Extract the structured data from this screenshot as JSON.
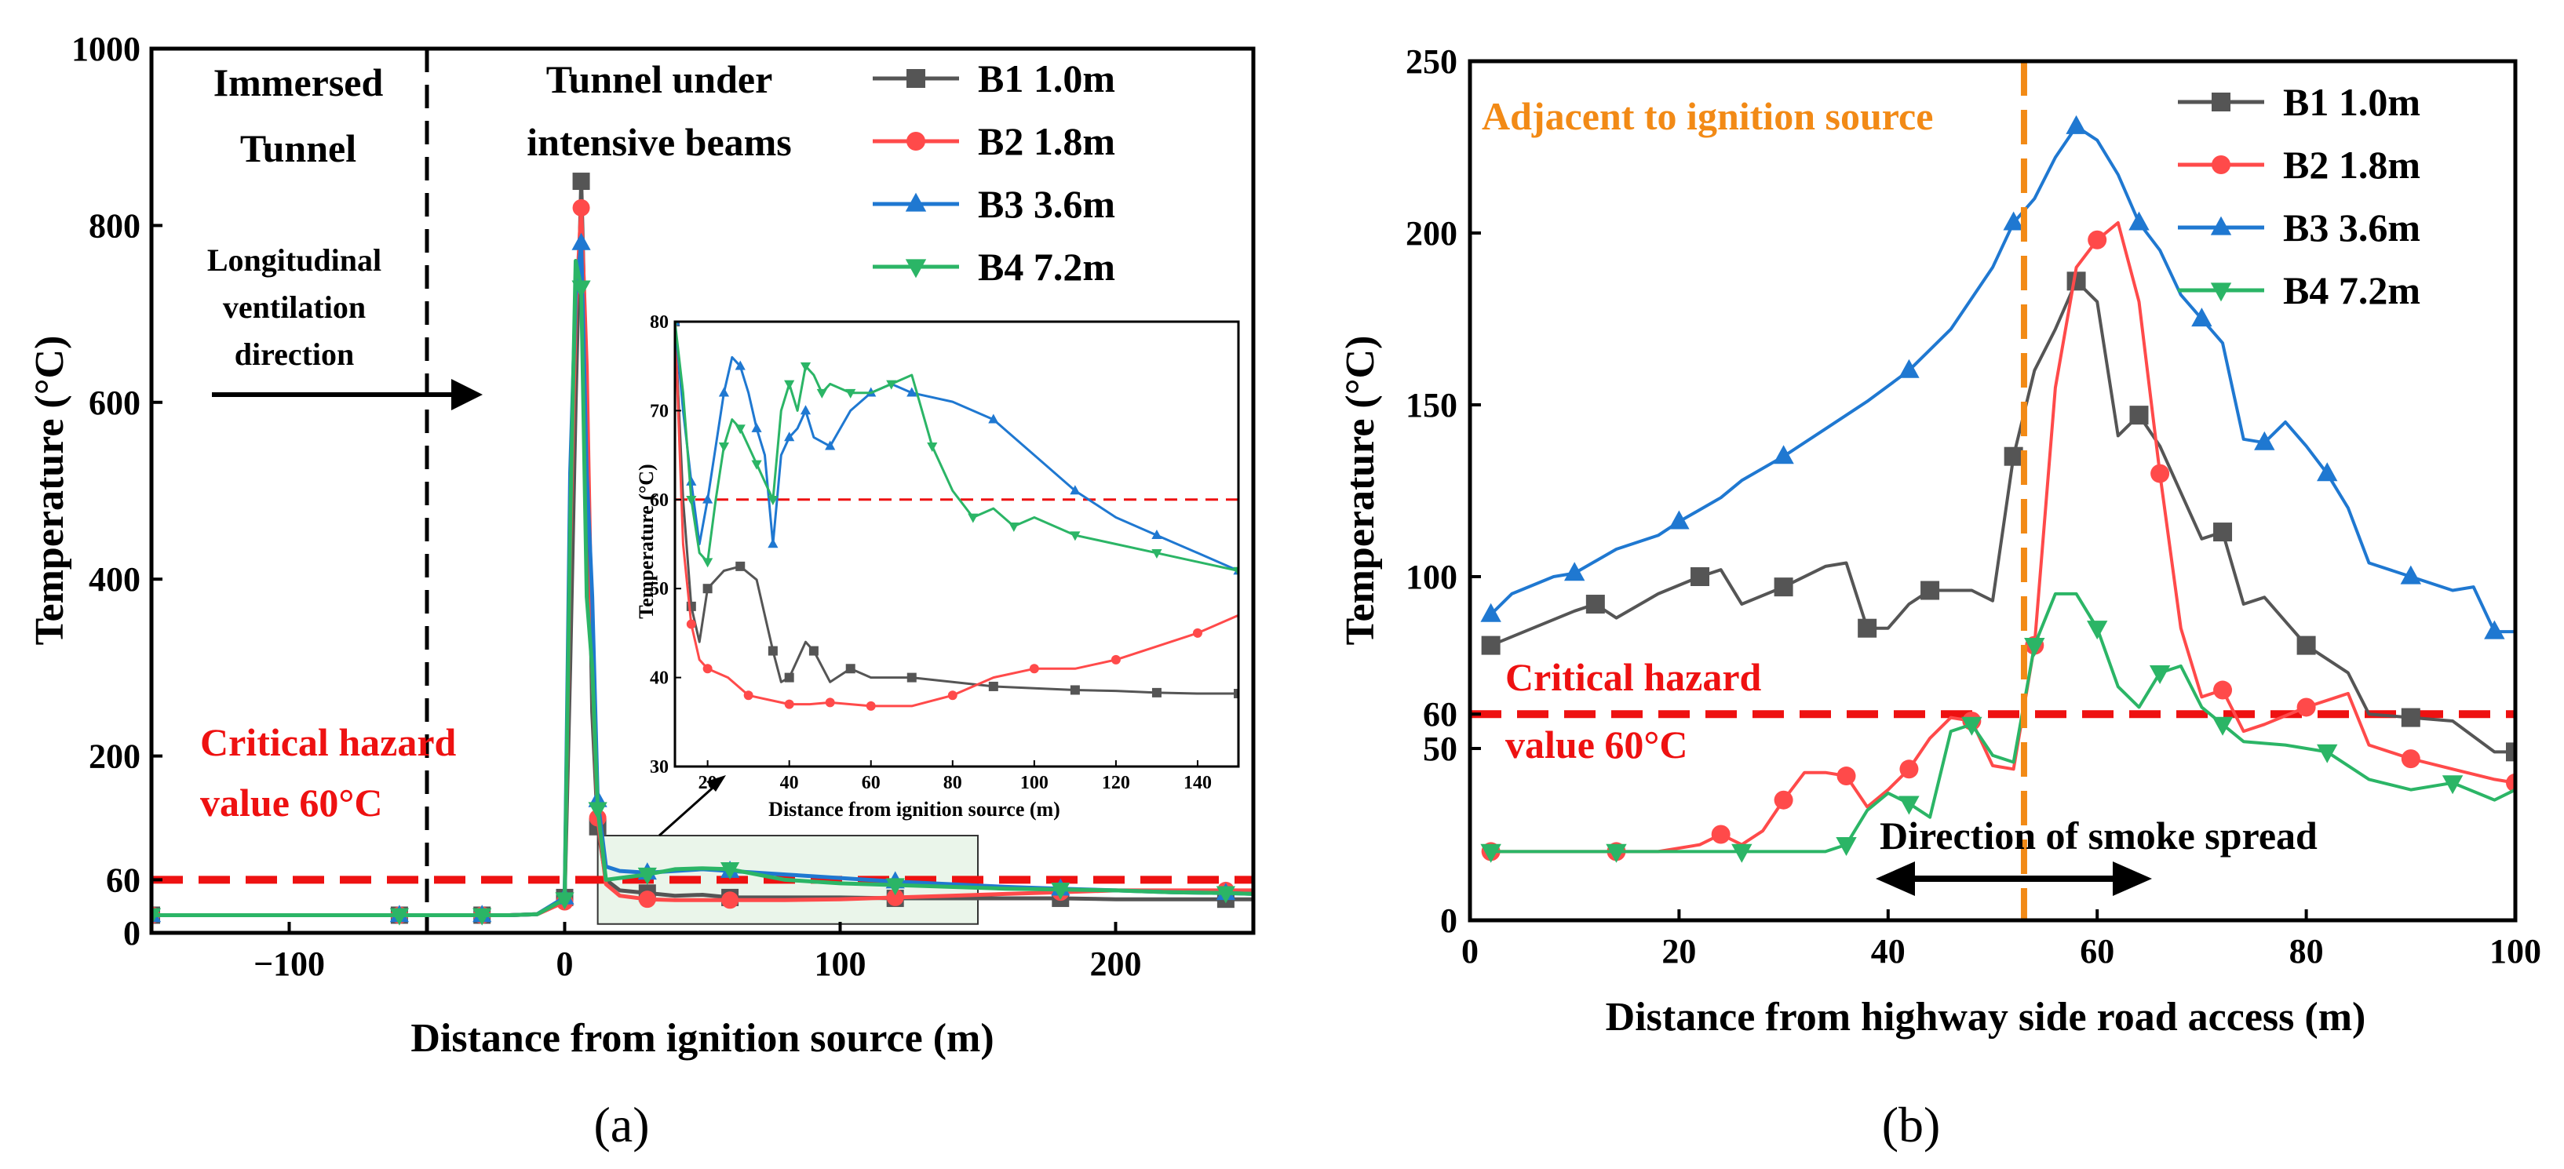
{
  "figure": {
    "label_a": "(a)",
    "label_b": "(b)"
  },
  "colors": {
    "B1": "#555555",
    "B2": "#ff4a4a",
    "B3": "#1f78d1",
    "B4": "#2bb566",
    "threshold": "#ee1111",
    "marker": "#f28a16"
  },
  "annotations_a": {
    "immersed_1": "Immersed",
    "immersed_2": "Tunnel",
    "beams_1": "Tunnel under",
    "beams_2": "intensive beams",
    "vent_1": "Longitudinal",
    "vent_2": "ventilation",
    "vent_3": "direction",
    "crit_1": "Critical hazard",
    "crit_2": "value 60°C"
  },
  "annotations_b": {
    "adjacent": "Adjacent to ignition source",
    "crit_1": "Critical hazard",
    "crit_2": "value 60°C",
    "smoke": "Direction of smoke spread"
  },
  "chart_data": [
    {
      "type": "line",
      "title": "(a)",
      "xlabel": "Distance from ignition source (m)",
      "ylabel": "Temperature (°C)",
      "xlim": [
        -150,
        250
      ],
      "ylim": [
        0,
        1000
      ],
      "xticks": [
        -100,
        0,
        100,
        200
      ],
      "xtick_labels": [
        "−100",
        "0",
        "100",
        "200"
      ],
      "yticks": [
        0,
        60,
        200,
        400,
        600,
        800,
        1000
      ],
      "threshold": 60,
      "divider_x": -50,
      "series": [
        {
          "name": "B1 1.0m",
          "key": "B1",
          "marker": "square",
          "x": [
            -150,
            -120,
            -90,
            -60,
            -50,
            -40,
            -30,
            -20,
            -10,
            0,
            2,
            4,
            6,
            8,
            10,
            12,
            15,
            20,
            30,
            40,
            50,
            60,
            80,
            100,
            120,
            140,
            160,
            180,
            200,
            220,
            240,
            250
          ],
          "y": [
            20,
            20,
            20,
            20,
            20,
            20,
            20,
            20,
            21,
            40,
            300,
            600,
            850,
            600,
            250,
            120,
            60,
            48,
            45,
            42,
            43,
            40,
            40,
            40,
            39,
            39,
            39,
            39,
            38,
            38,
            38,
            38
          ]
        },
        {
          "name": "B2 1.8m",
          "key": "B2",
          "marker": "circle",
          "x": [
            -150,
            -120,
            -90,
            -60,
            -50,
            -40,
            -30,
            -20,
            -10,
            0,
            2,
            4,
            6,
            8,
            10,
            12,
            15,
            20,
            30,
            40,
            50,
            60,
            80,
            100,
            120,
            140,
            160,
            180,
            200,
            220,
            240,
            250
          ],
          "y": [
            20,
            20,
            20,
            20,
            20,
            20,
            20,
            20,
            21,
            35,
            440,
            700,
            820,
            640,
            300,
            130,
            55,
            42,
            38,
            37,
            37,
            37,
            37,
            38,
            40,
            42,
            44,
            46,
            48,
            48,
            48,
            48
          ]
        },
        {
          "name": "B3 3.6m",
          "key": "B3",
          "marker": "triangle-up",
          "x": [
            -150,
            -120,
            -90,
            -60,
            -50,
            -40,
            -30,
            -20,
            -10,
            0,
            2,
            4,
            6,
            8,
            10,
            12,
            15,
            20,
            30,
            40,
            50,
            60,
            80,
            100,
            120,
            140,
            160,
            180,
            200,
            220,
            240,
            250
          ],
          "y": [
            20,
            20,
            20,
            20,
            20,
            20,
            20,
            20,
            21,
            40,
            520,
            720,
            780,
            520,
            380,
            150,
            75,
            70,
            68,
            70,
            72,
            70,
            66,
            62,
            58,
            55,
            52,
            50,
            48,
            46,
            45,
            44
          ]
        },
        {
          "name": "B4 7.2m",
          "key": "B4",
          "marker": "triangle-down",
          "x": [
            -150,
            -120,
            -90,
            -60,
            -50,
            -40,
            -30,
            -20,
            -10,
            0,
            2,
            4,
            6,
            8,
            10,
            12,
            15,
            20,
            30,
            40,
            50,
            60,
            80,
            100,
            120,
            140,
            160,
            180,
            200,
            220,
            240,
            250
          ],
          "y": [
            20,
            20,
            20,
            20,
            20,
            20,
            20,
            20,
            21,
            38,
            460,
            760,
            730,
            380,
            300,
            140,
            60,
            62,
            66,
            72,
            73,
            72,
            60,
            56,
            54,
            52,
            50,
            49,
            48,
            46,
            45,
            44
          ]
        }
      ]
    },
    {
      "type": "line",
      "title": "(a) inset",
      "xlabel": "Distance from ignition source (m)",
      "ylabel": "Temperature (°C)",
      "xlim": [
        12,
        150
      ],
      "ylim": [
        30,
        80
      ],
      "xticks": [
        20,
        40,
        60,
        80,
        100,
        120,
        140
      ],
      "yticks": [
        30,
        40,
        50,
        60,
        70,
        80
      ],
      "threshold": 60,
      "series": [
        {
          "name": "B1 1.0m",
          "key": "B1",
          "marker": "square",
          "x": [
            12,
            14,
            16,
            18,
            20,
            24,
            28,
            32,
            36,
            38,
            40,
            44,
            46,
            50,
            55,
            60,
            70,
            80,
            90,
            100,
            110,
            120,
            130,
            140,
            150
          ],
          "y": [
            80,
            60,
            48,
            44,
            50,
            52,
            52.5,
            51,
            43,
            39.5,
            40,
            44,
            43,
            39.5,
            41,
            40,
            40,
            39.5,
            39,
            38.8,
            38.6,
            38.5,
            38.3,
            38.2,
            38.2
          ]
        },
        {
          "name": "B2 1.8m",
          "key": "B2",
          "marker": "circle",
          "x": [
            12,
            14,
            16,
            18,
            20,
            25,
            30,
            35,
            40,
            45,
            50,
            55,
            60,
            70,
            80,
            90,
            100,
            110,
            120,
            130,
            140,
            150
          ],
          "y": [
            80,
            55,
            46,
            42,
            41,
            40,
            38,
            37.5,
            37,
            37,
            37.2,
            37,
            36.8,
            36.8,
            38,
            40,
            41,
            41,
            42,
            43.5,
            45,
            47
          ]
        },
        {
          "name": "B3 3.6m",
          "key": "B3",
          "marker": "triangle-up",
          "x": [
            12,
            14,
            16,
            18,
            20,
            22,
            24,
            26,
            28,
            30,
            32,
            34,
            36,
            38,
            40,
            42,
            44,
            46,
            50,
            55,
            60,
            65,
            70,
            80,
            90,
            100,
            110,
            120,
            130,
            140,
            150
          ],
          "y": [
            80,
            70,
            62,
            55,
            60,
            66,
            72,
            76,
            75,
            72,
            68,
            65,
            55,
            65,
            67,
            68,
            70,
            67,
            66,
            70,
            72,
            73,
            72,
            71,
            69,
            65,
            61,
            58,
            56,
            54,
            52
          ]
        },
        {
          "name": "B4 7.2m",
          "key": "B4",
          "marker": "triangle-down",
          "x": [
            12,
            14,
            16,
            18,
            20,
            22,
            24,
            26,
            28,
            30,
            32,
            34,
            36,
            38,
            40,
            42,
            44,
            46,
            48,
            50,
            55,
            60,
            65,
            70,
            75,
            80,
            85,
            90,
            95,
            100,
            110,
            120,
            130,
            140,
            150
          ],
          "y": [
            80,
            72,
            60,
            54,
            53,
            60,
            66,
            69,
            68,
            66,
            64,
            62,
            60,
            70,
            73,
            70,
            75,
            74,
            72,
            73,
            72,
            72,
            73,
            74,
            66,
            61,
            58,
            59,
            57,
            58,
            56,
            55,
            54,
            53,
            52
          ]
        }
      ]
    },
    {
      "type": "line",
      "title": "(b)",
      "xlabel": "Distance from highway side road access (m)",
      "ylabel": "Temperature (°C)",
      "xlim": [
        0,
        100
      ],
      "ylim": [
        0,
        250
      ],
      "xticks": [
        0,
        20,
        40,
        60,
        80,
        100
      ],
      "yticks": [
        0,
        50,
        60,
        100,
        150,
        200,
        250
      ],
      "threshold": 60,
      "ignition_x": 53,
      "series": [
        {
          "name": "B1 1.0m",
          "key": "B1",
          "marker": "square",
          "x": [
            2,
            6,
            10,
            12,
            14,
            18,
            22,
            24,
            26,
            30,
            34,
            36,
            38,
            40,
            42,
            44,
            48,
            50,
            52,
            54,
            56,
            58,
            60,
            62,
            64,
            66,
            70,
            72,
            74,
            76,
            80,
            84,
            86,
            90,
            94,
            98,
            100
          ],
          "y": [
            80,
            85,
            90,
            92,
            88,
            95,
            100,
            102,
            92,
            97,
            103,
            104,
            85,
            85,
            92,
            96,
            96,
            93,
            135,
            160,
            172,
            186,
            180,
            141,
            147,
            138,
            111,
            113,
            92,
            94,
            80,
            72,
            60,
            59,
            58,
            49,
            49
          ]
        },
        {
          "name": "B2 1.8m",
          "key": "B2",
          "marker": "circle",
          "x": [
            2,
            6,
            10,
            14,
            18,
            22,
            24,
            26,
            28,
            30,
            32,
            34,
            36,
            38,
            40,
            42,
            44,
            46,
            48,
            50,
            52,
            54,
            56,
            58,
            60,
            62,
            64,
            66,
            68,
            70,
            72,
            74,
            76,
            80,
            84,
            86,
            90,
            94,
            98,
            100
          ],
          "y": [
            20,
            20,
            20,
            20,
            20,
            22,
            25,
            22,
            26,
            35,
            43,
            43,
            42,
            33,
            38,
            44,
            53,
            59,
            58,
            45,
            44,
            80,
            155,
            190,
            198,
            203,
            180,
            130,
            85,
            65,
            67,
            55,
            57,
            62,
            66,
            51,
            47,
            44,
            41,
            40
          ]
        },
        {
          "name": "B3 3.6m",
          "key": "B3",
          "marker": "triangle-up",
          "x": [
            2,
            4,
            8,
            10,
            14,
            18,
            20,
            24,
            26,
            30,
            34,
            38,
            42,
            46,
            50,
            52,
            54,
            56,
            58,
            60,
            62,
            64,
            66,
            68,
            70,
            72,
            74,
            76,
            78,
            80,
            82,
            84,
            86,
            90,
            94,
            96,
            98,
            100
          ],
          "y": [
            89,
            95,
            100,
            101,
            108,
            112,
            116,
            123,
            128,
            135,
            143,
            151,
            160,
            172,
            190,
            203,
            210,
            222,
            231,
            227,
            217,
            203,
            195,
            182,
            175,
            168,
            140,
            139,
            145,
            138,
            130,
            120,
            104,
            100,
            96,
            97,
            84,
            84
          ]
        },
        {
          "name": "B4 7.2m",
          "key": "B4",
          "marker": "triangle-down",
          "x": [
            2,
            6,
            10,
            14,
            18,
            22,
            26,
            30,
            34,
            36,
            38,
            40,
            42,
            44,
            46,
            48,
            50,
            52,
            54,
            56,
            58,
            60,
            62,
            64,
            66,
            68,
            70,
            72,
            74,
            78,
            82,
            86,
            90,
            94,
            98,
            100
          ],
          "y": [
            20,
            20,
            20,
            20,
            20,
            20,
            20,
            20,
            20,
            22,
            32,
            37,
            34,
            30,
            55,
            57,
            48,
            46,
            80,
            95,
            95,
            85,
            68,
            62,
            72,
            74,
            62,
            57,
            52,
            51,
            49,
            41,
            38,
            40,
            35,
            38
          ]
        }
      ]
    }
  ]
}
